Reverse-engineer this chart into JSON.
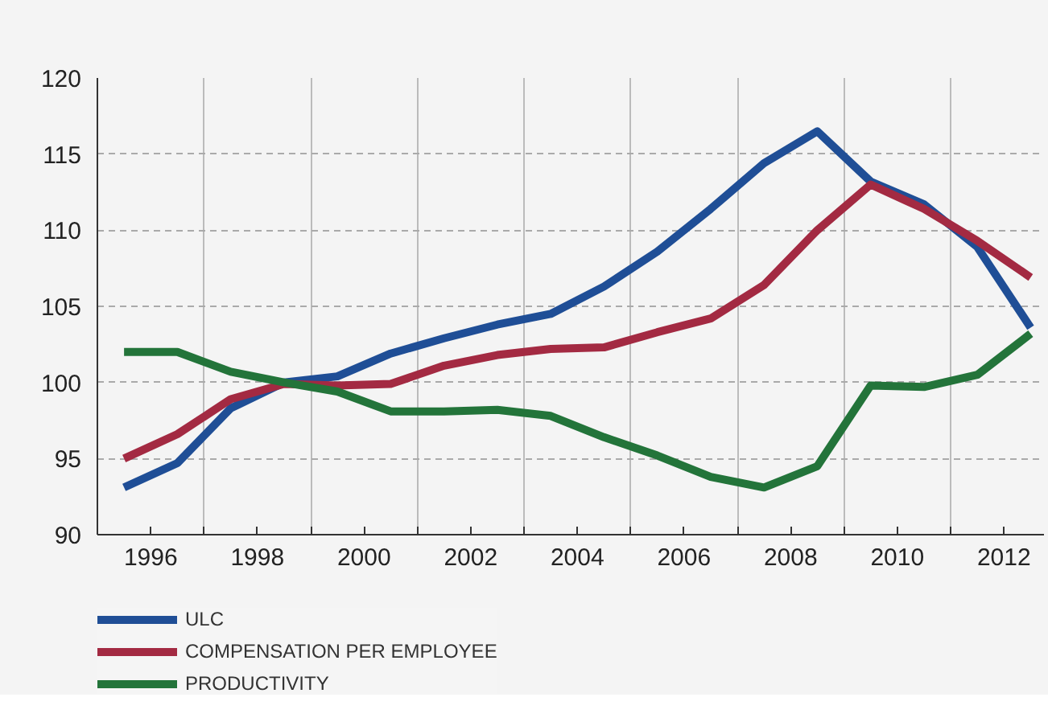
{
  "chart_data": {
    "type": "line",
    "x": [
      1995.5,
      1996.5,
      1997.5,
      1998.5,
      1999.5,
      2000.5,
      2001.5,
      2002.5,
      2003.5,
      2004.5,
      2005.5,
      2006.5,
      2007.5,
      2008.5,
      2009.5,
      2010.5,
      2011.5,
      2012.5
    ],
    "series": [
      {
        "name": "ULC",
        "color": "#1f4e96",
        "values": [
          93.1,
          94.7,
          98.3,
          100.0,
          100.4,
          101.9,
          102.9,
          103.8,
          104.5,
          106.3,
          108.6,
          111.4,
          114.4,
          116.5,
          113.2,
          111.7,
          108.9,
          103.6
        ]
      },
      {
        "name": "COMPENSATION PER EMPLOYEE",
        "color": "#a32a42",
        "values": [
          95.0,
          96.6,
          98.9,
          99.9,
          99.8,
          99.9,
          101.1,
          101.8,
          102.2,
          102.3,
          103.3,
          104.2,
          106.4,
          110.0,
          113.0,
          111.4,
          109.3,
          106.9
        ]
      },
      {
        "name": "PRODUCTIVITY",
        "color": "#23743a",
        "values": [
          102.0,
          102.0,
          100.7,
          100.0,
          99.4,
          98.1,
          98.1,
          98.2,
          97.8,
          96.4,
          95.2,
          93.8,
          93.1,
          94.5,
          99.8,
          99.7,
          100.5,
          103.2
        ]
      }
    ],
    "xlim": [
      1995,
      2012.75
    ],
    "xticks": [
      1996,
      {
        "value": 1997,
        "label": null
      },
      1998,
      {
        "value": 1999,
        "label": null
      },
      2000,
      {
        "value": 2001,
        "label": null
      },
      2002,
      {
        "value": 2003,
        "label": null
      },
      2004,
      {
        "value": 2005,
        "label": null
      },
      2006,
      {
        "value": 2007,
        "label": null
      },
      2008,
      {
        "value": 2009,
        "label": null
      },
      2010,
      {
        "value": 2011,
        "label": null
      },
      2012
    ],
    "ylim": [
      90,
      120
    ],
    "yticks": [
      90,
      95,
      100,
      105,
      110,
      115,
      120
    ],
    "grid": true,
    "legend": "bottom",
    "marker": "none",
    "line_style": "solid"
  }
}
